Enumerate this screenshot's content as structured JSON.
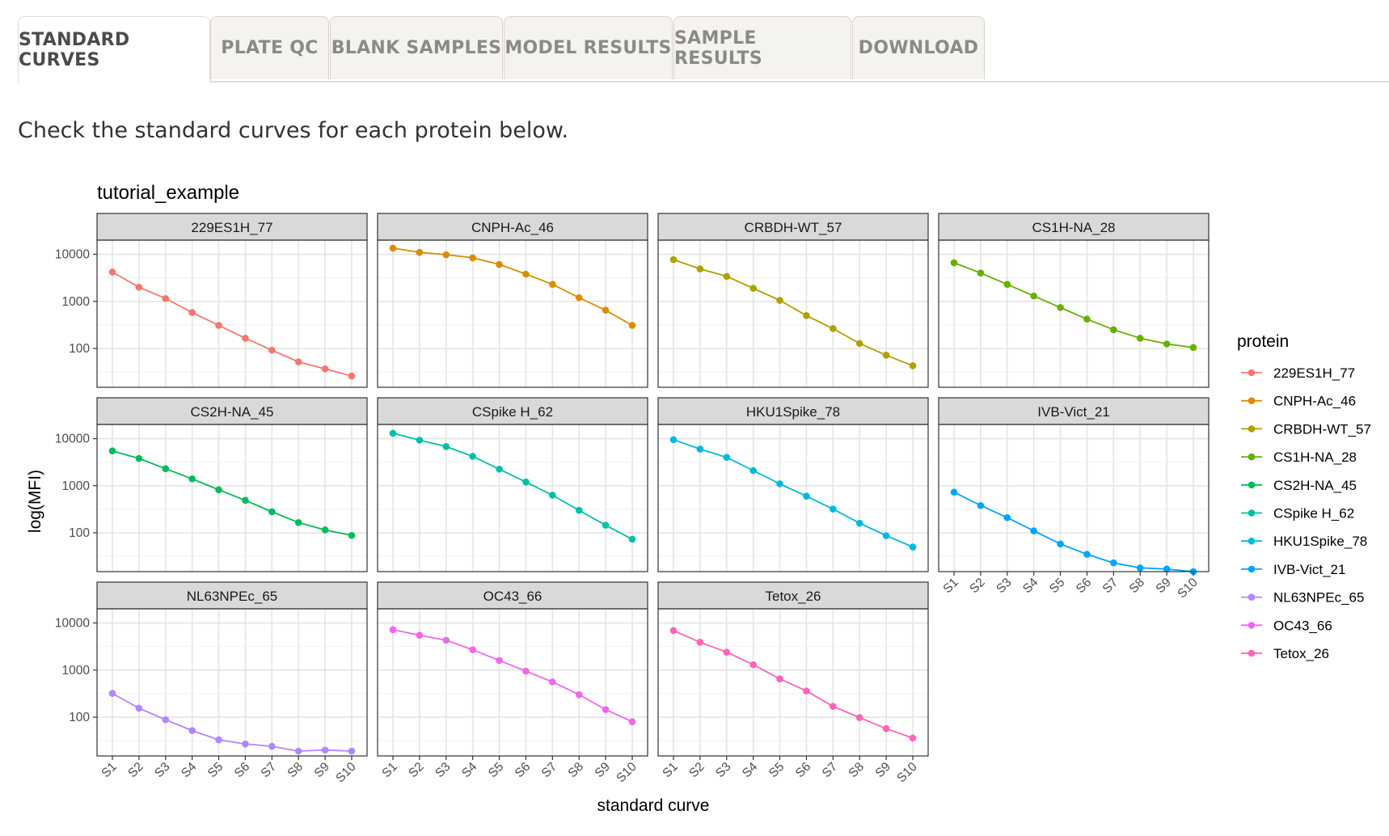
{
  "tabs": [
    {
      "label": "STANDARD CURVES",
      "active": true
    },
    {
      "label": "PLATE QC",
      "active": false
    },
    {
      "label": "BLANK SAMPLES",
      "active": false
    },
    {
      "label": "MODEL RESULTS",
      "active": false
    },
    {
      "label": "SAMPLE RESULTS",
      "active": false
    },
    {
      "label": "DOWNLOAD",
      "active": false
    }
  ],
  "intro_text": "Check the standard curves for each protein below.",
  "chart_data": {
    "type": "line",
    "title": "tutorial_example",
    "xlabel": "standard curve",
    "ylabel": "log(MFI)",
    "y_scale": "log",
    "y_ticks": [
      100,
      1000,
      10000
    ],
    "y_tick_labels": [
      "100",
      "1000",
      "10000"
    ],
    "ylim": [
      15,
      20000
    ],
    "categories": [
      "S1",
      "S2",
      "S3",
      "S4",
      "S5",
      "S6",
      "S7",
      "S8",
      "S9",
      "S10"
    ],
    "legend_title": "protein",
    "legend_position": "right",
    "grid": true,
    "series": [
      {
        "name": "229ES1H_77",
        "color": "#F8766D",
        "values": [
          4200,
          2000,
          1150,
          580,
          310,
          165,
          92,
          52,
          37,
          26
        ]
      },
      {
        "name": "CNPH-Ac_46",
        "color": "#DB8E00",
        "values": [
          13500,
          11000,
          9800,
          8400,
          6100,
          3800,
          2300,
          1200,
          650,
          310
        ]
      },
      {
        "name": "CRBDH-WT_57",
        "color": "#AEA200",
        "values": [
          7700,
          4900,
          3400,
          1900,
          1050,
          500,
          265,
          128,
          72,
          43
        ]
      },
      {
        "name": "CS1H-NA_28",
        "color": "#64B200",
        "values": [
          6600,
          4000,
          2300,
          1300,
          740,
          420,
          250,
          165,
          125,
          105
        ]
      },
      {
        "name": "CS2H-NA_45",
        "color": "#00BD5C",
        "values": [
          5500,
          3800,
          2300,
          1400,
          820,
          490,
          280,
          165,
          115,
          88
        ]
      },
      {
        "name": "CSpike H_62",
        "color": "#00C1A7",
        "values": [
          13000,
          9300,
          6800,
          4200,
          2250,
          1200,
          630,
          300,
          145,
          73
        ]
      },
      {
        "name": "HKU1Spike_78",
        "color": "#00BADE",
        "values": [
          9500,
          6000,
          4000,
          2100,
          1100,
          600,
          320,
          160,
          87,
          50
        ]
      },
      {
        "name": "IVB-Vict_21",
        "color": "#00A6FF",
        "values": [
          730,
          380,
          210,
          110,
          58,
          35,
          23,
          18,
          17,
          15
        ]
      },
      {
        "name": "NL63NPEc_65",
        "color": "#B385FF",
        "values": [
          320,
          155,
          88,
          52,
          33,
          27,
          24,
          19,
          20,
          19
        ]
      },
      {
        "name": "OC43_66",
        "color": "#EF67EB",
        "values": [
          7200,
          5500,
          4300,
          2700,
          1600,
          950,
          560,
          300,
          145,
          80
        ]
      },
      {
        "name": "Tetox_26",
        "color": "#FF63B6",
        "values": [
          6900,
          3900,
          2400,
          1300,
          650,
          360,
          170,
          98,
          57,
          36
        ]
      }
    ]
  }
}
